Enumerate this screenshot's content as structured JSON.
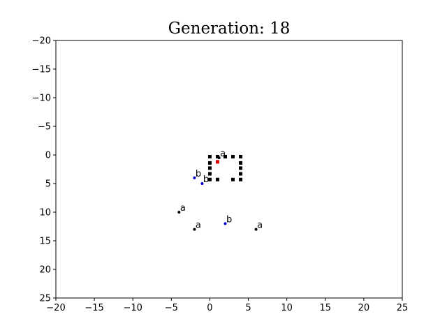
{
  "chart_data": {
    "type": "scatter",
    "title": "Generation: 18",
    "xlabel": "",
    "ylabel": "",
    "xlim": [
      -20,
      25
    ],
    "ylim": [
      -20,
      25
    ],
    "y_inverted": true,
    "grid": false,
    "xticks": [
      -20,
      -15,
      -10,
      -5,
      0,
      5,
      10,
      15,
      20,
      25
    ],
    "yticks": [
      -20,
      -15,
      -10,
      -5,
      0,
      5,
      10,
      15,
      20,
      25
    ],
    "xtick_labels": [
      "−20",
      "−15",
      "−10",
      "−5",
      "0",
      "5",
      "10",
      "15",
      "20",
      "25"
    ],
    "ytick_labels": [
      "−20",
      "−15",
      "−10",
      "−5",
      "0",
      "5",
      "10",
      "15",
      "20",
      "25"
    ],
    "series": [
      {
        "marker": "square",
        "color": "#000000",
        "points": [
          {
            "x": 0,
            "y": 0.3
          },
          {
            "x": 1,
            "y": 0.3
          },
          {
            "x": 2,
            "y": 0.3
          },
          {
            "x": 3,
            "y": 0.3
          },
          {
            "x": 4,
            "y": 0.3
          },
          {
            "x": 0,
            "y": 1.4
          },
          {
            "x": 4,
            "y": 1.4
          },
          {
            "x": 0,
            "y": 2.3
          },
          {
            "x": 4,
            "y": 2.3
          },
          {
            "x": 0,
            "y": 3.3
          },
          {
            "x": 4,
            "y": 3.3
          },
          {
            "x": 0,
            "y": 4.3
          },
          {
            "x": 1,
            "y": 4.3
          },
          {
            "x": 3,
            "y": 4.3
          },
          {
            "x": 4,
            "y": 4.3
          }
        ]
      },
      {
        "marker": "square",
        "color": "#e00000",
        "points": [
          {
            "x": 1,
            "y": 1.2
          }
        ]
      },
      {
        "marker": "dot",
        "color": "#000000",
        "points": [
          {
            "x": -4,
            "y": 10,
            "label": "a"
          },
          {
            "x": -2,
            "y": 13,
            "label": "a"
          },
          {
            "x": 6,
            "y": 13,
            "label": "a"
          },
          {
            "x": 1.2,
            "y": 0.5,
            "label": "a"
          }
        ]
      },
      {
        "marker": "dot",
        "color": "#0000cc",
        "points": [
          {
            "x": -2,
            "y": 4,
            "label": "b"
          },
          {
            "x": -1,
            "y": 5,
            "label": "b"
          },
          {
            "x": 2,
            "y": 12,
            "label": "b"
          }
        ]
      }
    ]
  }
}
